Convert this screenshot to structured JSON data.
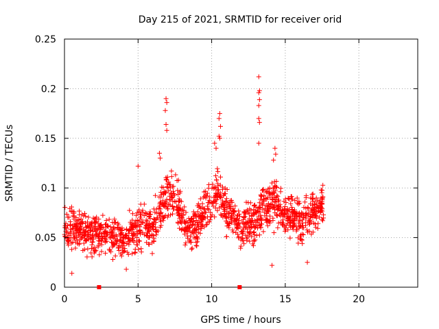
{
  "chart_data": {
    "type": "scatter",
    "title": "Day 215 of 2021, SRMTID for receiver orid",
    "xlabel": "GPS time / hours",
    "ylabel": "SRMTID / TECUs",
    "xlim": [
      0,
      24
    ],
    "ylim": [
      0,
      0.25
    ],
    "x_ticks": [
      0,
      5,
      10,
      15,
      20
    ],
    "x_tick_labels": [
      "0",
      "5",
      "10",
      "15",
      "20"
    ],
    "y_ticks": [
      0,
      0.05,
      0.1,
      0.15,
      0.2,
      0.25
    ],
    "y_tick_labels": [
      "0",
      "0.05",
      "0.1",
      "0.15",
      "0.2",
      "0.25"
    ],
    "grid": true,
    "marker": "+",
    "color": "#ff0000",
    "gap_markers_x": [
      2.35,
      11.9
    ],
    "envelope": [
      {
        "t": 0.0,
        "base": 0.055,
        "spread": 0.03
      },
      {
        "t": 1.0,
        "base": 0.058,
        "spread": 0.03
      },
      {
        "t": 2.0,
        "base": 0.055,
        "spread": 0.03
      },
      {
        "t": 3.0,
        "base": 0.052,
        "spread": 0.025
      },
      {
        "t": 4.0,
        "base": 0.05,
        "spread": 0.028
      },
      {
        "t": 5.0,
        "base": 0.058,
        "spread": 0.03
      },
      {
        "t": 6.0,
        "base": 0.06,
        "spread": 0.03
      },
      {
        "t": 6.8,
        "base": 0.092,
        "spread": 0.035
      },
      {
        "t": 7.5,
        "base": 0.09,
        "spread": 0.035
      },
      {
        "t": 8.3,
        "base": 0.06,
        "spread": 0.03
      },
      {
        "t": 9.0,
        "base": 0.062,
        "spread": 0.03
      },
      {
        "t": 9.8,
        "base": 0.085,
        "spread": 0.03
      },
      {
        "t": 10.4,
        "base": 0.1,
        "spread": 0.035
      },
      {
        "t": 11.0,
        "base": 0.075,
        "spread": 0.03
      },
      {
        "t": 12.0,
        "base": 0.06,
        "spread": 0.03
      },
      {
        "t": 12.8,
        "base": 0.06,
        "spread": 0.03
      },
      {
        "t": 13.5,
        "base": 0.08,
        "spread": 0.035
      },
      {
        "t": 14.3,
        "base": 0.085,
        "spread": 0.035
      },
      {
        "t": 15.0,
        "base": 0.072,
        "spread": 0.03
      },
      {
        "t": 16.0,
        "base": 0.068,
        "spread": 0.03
      },
      {
        "t": 17.0,
        "base": 0.075,
        "spread": 0.03
      },
      {
        "t": 17.6,
        "base": 0.085,
        "spread": 0.03
      }
    ],
    "outliers": [
      {
        "x": 6.9,
        "y": 0.19
      },
      {
        "x": 6.95,
        "y": 0.186
      },
      {
        "x": 6.85,
        "y": 0.178
      },
      {
        "x": 6.9,
        "y": 0.164
      },
      {
        "x": 6.95,
        "y": 0.158
      },
      {
        "x": 10.55,
        "y": 0.175
      },
      {
        "x": 10.5,
        "y": 0.17
      },
      {
        "x": 10.6,
        "y": 0.162
      },
      {
        "x": 10.5,
        "y": 0.152
      },
      {
        "x": 10.55,
        "y": 0.15
      },
      {
        "x": 10.2,
        "y": 0.145
      },
      {
        "x": 10.3,
        "y": 0.14
      },
      {
        "x": 13.2,
        "y": 0.212
      },
      {
        "x": 13.25,
        "y": 0.198
      },
      {
        "x": 13.2,
        "y": 0.196
      },
      {
        "x": 13.25,
        "y": 0.189
      },
      {
        "x": 13.2,
        "y": 0.183
      },
      {
        "x": 13.2,
        "y": 0.17
      },
      {
        "x": 13.25,
        "y": 0.166
      },
      {
        "x": 13.2,
        "y": 0.145
      },
      {
        "x": 14.3,
        "y": 0.14
      },
      {
        "x": 14.35,
        "y": 0.134
      },
      {
        "x": 14.2,
        "y": 0.128
      },
      {
        "x": 6.45,
        "y": 0.135
      },
      {
        "x": 6.5,
        "y": 0.13
      },
      {
        "x": 5.0,
        "y": 0.122
      },
      {
        "x": 0.5,
        "y": 0.014
      },
      {
        "x": 14.1,
        "y": 0.022
      },
      {
        "x": 4.2,
        "y": 0.018
      },
      {
        "x": 16.5,
        "y": 0.025
      }
    ]
  }
}
